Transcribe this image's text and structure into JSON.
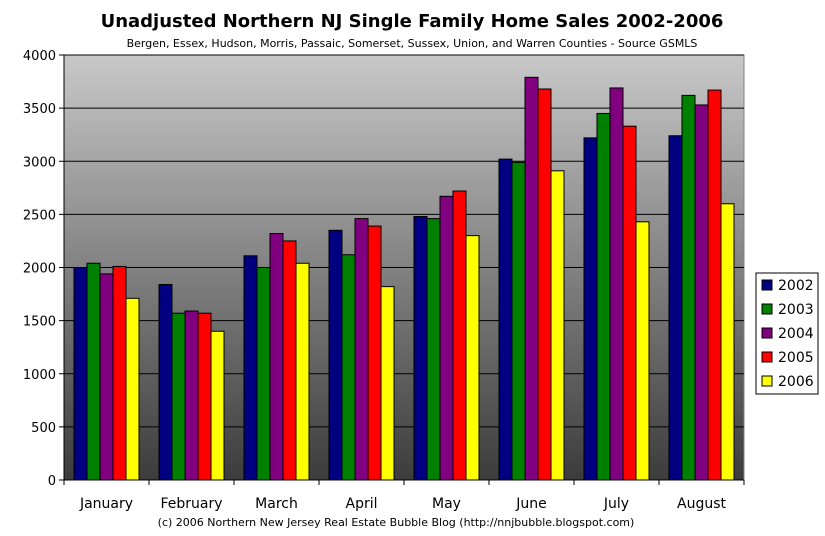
{
  "chart_data": {
    "type": "bar",
    "title": "Unadjusted Northern NJ Single Family Home Sales 2002-2006",
    "subtitle": "Bergen, Essex, Hudson, Morris, Passaic, Somerset, Sussex, Union, and Warren Counties - Source GSMLS",
    "footer": "(c) 2006 Northern New Jersey Real Estate Bubble Blog (http://nnjbubble.blogspot.com)",
    "xlabel": "",
    "ylabel": "",
    "ylim": [
      0,
      4000
    ],
    "yticks": [
      0,
      500,
      1000,
      1500,
      2000,
      2500,
      3000,
      3500,
      4000
    ],
    "grid": true,
    "legend_position": "right",
    "categories": [
      "January",
      "February",
      "March",
      "April",
      "May",
      "June",
      "July",
      "August"
    ],
    "series": [
      {
        "name": "2002",
        "color": "#000080",
        "values": [
          2000,
          1840,
          2110,
          2350,
          2480,
          3020,
          3220,
          3240
        ]
      },
      {
        "name": "2003",
        "color": "#008000",
        "values": [
          2040,
          1570,
          2000,
          2120,
          2460,
          2990,
          3450,
          3620
        ]
      },
      {
        "name": "2004",
        "color": "#800080",
        "values": [
          1940,
          1590,
          2320,
          2460,
          2670,
          3790,
          3690,
          3530
        ]
      },
      {
        "name": "2005",
        "color": "#ff0000",
        "values": [
          2010,
          1570,
          2250,
          2390,
          2720,
          3680,
          3330,
          3670
        ]
      },
      {
        "name": "2006",
        "color": "#ffff00",
        "values": [
          1710,
          1400,
          2040,
          1820,
          2300,
          2910,
          2430,
          2600
        ]
      }
    ]
  }
}
